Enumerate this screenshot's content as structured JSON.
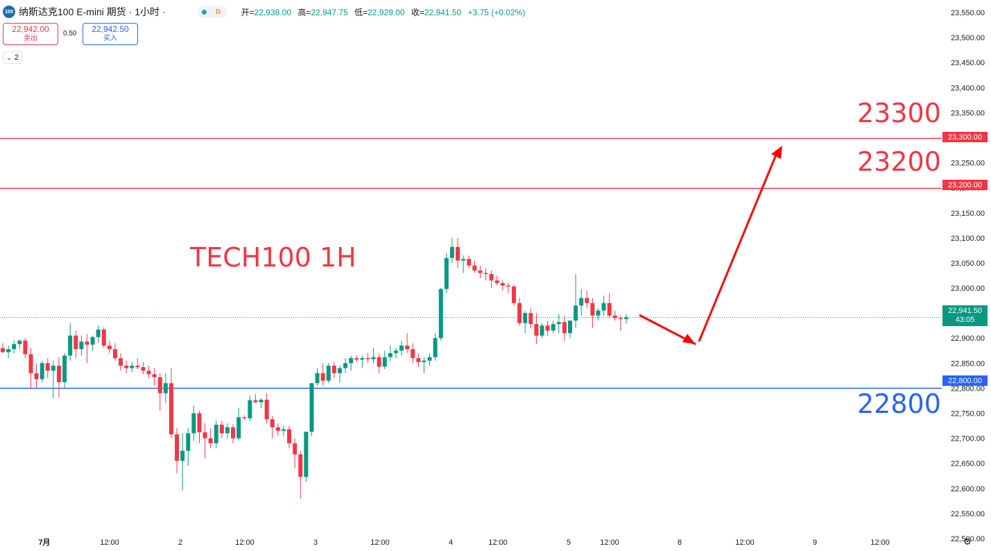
{
  "header": {
    "symbol_badge": "100",
    "title": "纳斯达克100 E-mini 期货 · 1小时 ·",
    "status_dot_color": "#22ab94",
    "data_badge": "D",
    "ohlc": {
      "open_label": "开=",
      "open": "22,938.00",
      "high_label": "高=",
      "high": "22,947.75",
      "low_label": "低=",
      "low": "22,929.00",
      "close_label": "收=",
      "close": "22,941.50",
      "change": "+3.75 (+0.02%)"
    }
  },
  "trade": {
    "sell_price": "22,942.00",
    "sell_label": "卖出",
    "spread": "0.50",
    "buy_price": "22,942.50",
    "buy_label": "买入"
  },
  "indicators_toggle": {
    "icon": "chevron-down-icon",
    "count": "2"
  },
  "annotations": {
    "chart_label": "TECH100 1H",
    "level_23300": "23300",
    "level_23200": "23200",
    "level_22800": "22800"
  },
  "price_tags": {
    "tag_23300": "23,300.00",
    "tag_23200": "23,200.00",
    "tag_22800": "22,800.00",
    "last_price": "22,941.50",
    "countdown": "43:05"
  },
  "colors": {
    "up": "#089981",
    "down": "#f23645",
    "resistance": "#f23645",
    "support": "#2962ff",
    "arrow": "#ff0000",
    "annotation_red": "#f23645",
    "annotation_blue": "#2962ff"
  },
  "chart_data": {
    "type": "candlestick",
    "title": "",
    "ylim": [
      22475,
      23575
    ],
    "y_ticks": [
      "23,550.00",
      "23,500.00",
      "23,450.00",
      "23,400.00",
      "23,350.00",
      "23,300.00",
      "23,250.00",
      "23,200.00",
      "23,150.00",
      "23,100.00",
      "23,050.00",
      "23,000.00",
      "22,950.00",
      "22,900.00",
      "22,850.00",
      "22,800.00",
      "22,750.00",
      "22,700.00",
      "22,650.00",
      "22,600.00",
      "22,550.00",
      "22,500.00"
    ],
    "x_ticks": [
      "7月",
      "12:00",
      "2",
      "12:00",
      "3",
      "12:00",
      "4",
      "12:00",
      "5",
      "12:00",
      "8",
      "12:00",
      "9",
      "12:00"
    ],
    "horizontal_lines": [
      {
        "price": 23300,
        "color": "#f23645"
      },
      {
        "price": 23200,
        "color": "#f23645"
      },
      {
        "price": 22800,
        "color": "#2962ff"
      }
    ],
    "last_price_line": 22941.5,
    "candles": [
      [
        22880,
        22890,
        22870,
        22872
      ],
      [
        22872,
        22885,
        22860,
        22878
      ],
      [
        22878,
        22895,
        22870,
        22888
      ],
      [
        22888,
        22897,
        22878,
        22895
      ],
      [
        22895,
        22900,
        22860,
        22868
      ],
      [
        22868,
        22880,
        22800,
        22830
      ],
      [
        22830,
        22850,
        22800,
        22818
      ],
      [
        22818,
        22855,
        22812,
        22850
      ],
      [
        22850,
        22860,
        22820,
        22835
      ],
      [
        22835,
        22855,
        22780,
        22845
      ],
      [
        22845,
        22862,
        22782,
        22812
      ],
      [
        22812,
        22870,
        22800,
        22865
      ],
      [
        22865,
        22930,
        22855,
        22905
      ],
      [
        22905,
        22915,
        22860,
        22878
      ],
      [
        22878,
        22905,
        22865,
        22893
      ],
      [
        22893,
        22908,
        22850,
        22887
      ],
      [
        22887,
        22905,
        22875,
        22902
      ],
      [
        22902,
        22925,
        22890,
        22917
      ],
      [
        22917,
        22922,
        22880,
        22885
      ],
      [
        22885,
        22895,
        22870,
        22878
      ],
      [
        22878,
        22890,
        22855,
        22860
      ],
      [
        22860,
        22870,
        22835,
        22845
      ],
      [
        22845,
        22855,
        22830,
        22840
      ],
      [
        22840,
        22852,
        22832,
        22845
      ],
      [
        22845,
        22860,
        22838,
        22842
      ],
      [
        22842,
        22852,
        22828,
        22835
      ],
      [
        22835,
        22845,
        22820,
        22828
      ],
      [
        22828,
        22840,
        22805,
        22822
      ],
      [
        22822,
        22830,
        22755,
        22790
      ],
      [
        22790,
        22830,
        22770,
        22810
      ],
      [
        22810,
        22840,
        22700,
        22708
      ],
      [
        22708,
        22720,
        22630,
        22655
      ],
      [
        22655,
        22710,
        22595,
        22675
      ],
      [
        22675,
        22720,
        22645,
        22710
      ],
      [
        22710,
        22765,
        22695,
        22750
      ],
      [
        22750,
        22755,
        22690,
        22712
      ],
      [
        22712,
        22730,
        22660,
        22700
      ],
      [
        22700,
        22720,
        22680,
        22690
      ],
      [
        22690,
        22735,
        22680,
        22727
      ],
      [
        22727,
        22735,
        22700,
        22710
      ],
      [
        22710,
        22730,
        22700,
        22722
      ],
      [
        22722,
        22728,
        22690,
        22700
      ],
      [
        22700,
        22760,
        22695,
        22742
      ],
      [
        22742,
        22746,
        22736,
        22740
      ],
      [
        22740,
        22785,
        22735,
        22776
      ],
      [
        22776,
        22788,
        22770,
        22772
      ],
      [
        22772,
        22780,
        22760,
        22777
      ],
      [
        22777,
        22790,
        22730,
        22738
      ],
      [
        22738,
        22745,
        22700,
        22722
      ],
      [
        22722,
        22730,
        22705,
        22715
      ],
      [
        22715,
        22725,
        22705,
        22718
      ],
      [
        22718,
        22725,
        22680,
        22690
      ],
      [
        22690,
        22700,
        22640,
        22668
      ],
      [
        22668,
        22675,
        22580,
        22623
      ],
      [
        22623,
        22710,
        22613,
        22713
      ],
      [
        22713,
        22810,
        22705,
        22810
      ],
      [
        22810,
        22840,
        22805,
        22830
      ],
      [
        22830,
        22850,
        22805,
        22815
      ],
      [
        22815,
        22850,
        22810,
        22845
      ],
      [
        22845,
        22852,
        22820,
        22830
      ],
      [
        22830,
        22845,
        22812,
        22840
      ],
      [
        22840,
        22860,
        22830,
        22850
      ],
      [
        22850,
        22865,
        22835,
        22860
      ],
      [
        22860,
        22866,
        22852,
        22857
      ],
      [
        22857,
        22865,
        22840,
        22860
      ],
      [
        22860,
        22870,
        22850,
        22858
      ],
      [
        22858,
        22880,
        22850,
        22862
      ],
      [
        22862,
        22870,
        22830,
        22843
      ],
      [
        22843,
        22875,
        22838,
        22862
      ],
      [
        22862,
        22885,
        22855,
        22870
      ],
      [
        22870,
        22880,
        22860,
        22875
      ],
      [
        22875,
        22895,
        22865,
        22885
      ],
      [
        22885,
        22910,
        22870,
        22878
      ],
      [
        22878,
        22890,
        22850,
        22860
      ],
      [
        22860,
        22870,
        22842,
        22852
      ],
      [
        22852,
        22862,
        22830,
        22855
      ],
      [
        22855,
        22870,
        22845,
        22862
      ],
      [
        22862,
        22910,
        22855,
        22900
      ],
      [
        22900,
        23000,
        22895,
        22998
      ],
      [
        22998,
        23070,
        22990,
        23060
      ],
      [
        23060,
        23100,
        23050,
        23082
      ],
      [
        23082,
        23100,
        23040,
        23055
      ],
      [
        23055,
        23065,
        23030,
        23058
      ],
      [
        23058,
        23065,
        23040,
        23045
      ],
      [
        23045,
        23055,
        23030,
        23035
      ],
      [
        23035,
        23045,
        23020,
        23030
      ],
      [
        23030,
        23040,
        23015,
        23028
      ],
      [
        23028,
        23035,
        23000,
        23015
      ],
      [
        23015,
        23025,
        23005,
        23010
      ],
      [
        23010,
        23015,
        22995,
        23005
      ],
      [
        23005,
        23010,
        22990,
        23003
      ],
      [
        23003,
        23007,
        22965,
        22970
      ],
      [
        22970,
        22980,
        22925,
        22930
      ],
      [
        22930,
        22955,
        22910,
        22950
      ],
      [
        22950,
        22960,
        22920,
        22928
      ],
      [
        22928,
        22950,
        22888,
        22905
      ],
      [
        22905,
        22930,
        22900,
        22925
      ],
      [
        22925,
        22935,
        22905,
        22915
      ],
      [
        22915,
        22935,
        22910,
        22928
      ],
      [
        22928,
        22948,
        22910,
        22932
      ],
      [
        22932,
        22945,
        22895,
        22910
      ],
      [
        22910,
        22935,
        22900,
        22935
      ],
      [
        22935,
        23028,
        22920,
        22965
      ],
      [
        22965,
        22998,
        22945,
        22980
      ],
      [
        22980,
        22995,
        22960,
        22970
      ],
      [
        22970,
        22980,
        22920,
        22945
      ],
      [
        22945,
        22960,
        22935,
        22955
      ],
      [
        22955,
        22985,
        22945,
        22970
      ],
      [
        22970,
        22990,
        22940,
        22945
      ],
      [
        22945,
        22955,
        22935,
        22940
      ],
      [
        22940,
        22945,
        22915,
        22938
      ],
      [
        22938,
        22947.75,
        22929,
        22941.5
      ]
    ]
  }
}
